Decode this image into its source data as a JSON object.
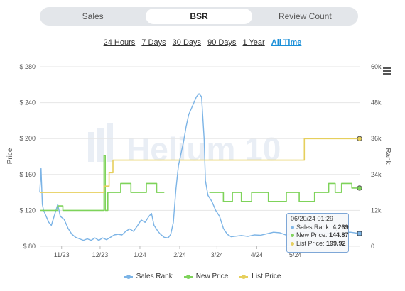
{
  "tabs": [
    {
      "label": "Sales",
      "active": false
    },
    {
      "label": "BSR",
      "active": true
    },
    {
      "label": "Review Count",
      "active": false
    }
  ],
  "ranges": [
    "24 Hours",
    "7 Days",
    "30 Days",
    "90 Days",
    "1 Year",
    "All Time"
  ],
  "active_range": "All Time",
  "watermark": "Helium 10",
  "colors": {
    "sales_rank": "#7cb4e6",
    "new_price": "#7ed35a",
    "list_price": "#e6cf5c",
    "accent": "#1a8fd8"
  },
  "icons": {
    "menu": "hamburger-menu-icon"
  },
  "tooltip": {
    "date": "06/20/24 01:29",
    "rows": [
      {
        "label": "Sales Rank:",
        "value": "4,269",
        "color": "#7cb4e6"
      },
      {
        "label": "New Price:",
        "value": "144.87",
        "color": "#7ed35a"
      },
      {
        "label": "List Price:",
        "value": "199.92",
        "color": "#e6cf5c"
      }
    ]
  },
  "chart_data": {
    "type": "line",
    "xlabel": "",
    "ylabel": "Price",
    "y2label": "Rank",
    "ylim": [
      80,
      280
    ],
    "y2lim": [
      0,
      60000
    ],
    "yticks": [
      "$ 80",
      "$ 120",
      "$ 160",
      "$ 200",
      "$ 240",
      "$ 280"
    ],
    "yticks_values": [
      80,
      120,
      160,
      200,
      240,
      280
    ],
    "y2ticks": [
      "0",
      "12k",
      "24k",
      "36k",
      "48k",
      "60k"
    ],
    "y2ticks_values": [
      0,
      12000,
      24000,
      36000,
      48000,
      60000
    ],
    "xticks": [
      {
        "label": "11/23",
        "x": "2023-11-01"
      },
      {
        "label": "12/23",
        "x": "2023-12-01"
      },
      {
        "label": "1/24",
        "x": "2024-01-01"
      },
      {
        "label": "2/24",
        "x": "2024-02-01"
      },
      {
        "label": "3/24",
        "x": "2024-03-01"
      },
      {
        "label": "4/24",
        "x": "2024-04-01"
      },
      {
        "label": "5/24",
        "x": "2024-05-01"
      }
    ],
    "xlim": [
      "2023-10-15",
      "2024-06-20"
    ],
    "grid": true,
    "legend": "bottom",
    "series": [
      {
        "name": "Sales Rank",
        "axis": "rank",
        "points": [
          [
            "2023-10-15",
            18000
          ],
          [
            "2023-10-16",
            26000
          ],
          [
            "2023-10-17",
            14000
          ],
          [
            "2023-10-18",
            12000
          ],
          [
            "2023-10-20",
            10000
          ],
          [
            "2023-10-22",
            8000
          ],
          [
            "2023-10-24",
            7000
          ],
          [
            "2023-10-29",
            14000
          ],
          [
            "2023-10-31",
            10000
          ],
          [
            "2023-11-03",
            9000
          ],
          [
            "2023-11-06",
            6000
          ],
          [
            "2023-11-09",
            4000
          ],
          [
            "2023-11-12",
            3000
          ],
          [
            "2023-11-15",
            2500
          ],
          [
            "2023-11-18",
            2000
          ],
          [
            "2023-11-21",
            2500
          ],
          [
            "2023-11-24",
            2000
          ],
          [
            "2023-11-27",
            2800
          ],
          [
            "2023-11-30",
            2000
          ],
          [
            "2023-12-03",
            2800
          ],
          [
            "2023-12-06",
            2200
          ],
          [
            "2023-12-09",
            3000
          ],
          [
            "2023-12-12",
            3800
          ],
          [
            "2023-12-15",
            4000
          ],
          [
            "2023-12-18",
            3800
          ],
          [
            "2023-12-21",
            5000
          ],
          [
            "2023-12-24",
            5800
          ],
          [
            "2023-12-27",
            5000
          ],
          [
            "2023-12-30",
            6800
          ],
          [
            "2024-01-02",
            8800
          ],
          [
            "2024-01-05",
            8000
          ],
          [
            "2024-01-08",
            10000
          ],
          [
            "2024-01-10",
            11000
          ],
          [
            "2024-01-12",
            7000
          ],
          [
            "2024-01-15",
            5000
          ],
          [
            "2024-01-17",
            4000
          ],
          [
            "2024-01-20",
            3000
          ],
          [
            "2024-01-23",
            2800
          ],
          [
            "2024-01-25",
            4000
          ],
          [
            "2024-01-27",
            8000
          ],
          [
            "2024-01-29",
            19000
          ],
          [
            "2024-01-31",
            27000
          ],
          [
            "2024-02-02",
            31000
          ],
          [
            "2024-02-04",
            35000
          ],
          [
            "2024-02-06",
            40000
          ],
          [
            "2024-02-08",
            44000
          ],
          [
            "2024-02-10",
            46000
          ],
          [
            "2024-02-12",
            48000
          ],
          [
            "2024-02-14",
            50000
          ],
          [
            "2024-02-16",
            51000
          ],
          [
            "2024-02-18",
            50000
          ],
          [
            "2024-02-20",
            36000
          ],
          [
            "2024-02-21",
            22000
          ],
          [
            "2024-02-23",
            17000
          ],
          [
            "2024-02-26",
            15000
          ],
          [
            "2024-02-29",
            12000
          ],
          [
            "2024-03-03",
            10000
          ],
          [
            "2024-03-06",
            6000
          ],
          [
            "2024-03-09",
            4000
          ],
          [
            "2024-03-12",
            3200
          ],
          [
            "2024-03-16",
            3400
          ],
          [
            "2024-03-20",
            3600
          ],
          [
            "2024-03-25",
            3300
          ],
          [
            "2024-03-30",
            3800
          ],
          [
            "2024-04-04",
            3700
          ],
          [
            "2024-04-09",
            4200
          ],
          [
            "2024-04-14",
            4700
          ],
          [
            "2024-04-19",
            4500
          ],
          [
            "2024-04-24",
            3700
          ],
          [
            "2024-04-29",
            4200
          ],
          [
            "2024-05-04",
            4600
          ],
          [
            "2024-05-09",
            5000
          ],
          [
            "2024-05-14",
            4800
          ],
          [
            "2024-05-19",
            4500
          ],
          [
            "2024-05-24",
            4300
          ],
          [
            "2024-05-29",
            4400
          ],
          [
            "2024-06-03",
            4200
          ],
          [
            "2024-06-08",
            4600
          ],
          [
            "2024-06-13",
            4700
          ],
          [
            "2024-06-20",
            4269
          ]
        ]
      },
      {
        "name": "New Price",
        "axis": "price",
        "points": [
          [
            "2023-10-15",
            120
          ],
          [
            "2023-10-29",
            120
          ],
          [
            "2023-10-29",
            125
          ],
          [
            "2023-11-02",
            125
          ],
          [
            "2023-11-02",
            120
          ],
          [
            "2023-12-04",
            120
          ],
          [
            "2023-12-04",
            181
          ],
          [
            "2023-12-05",
            181
          ],
          [
            "2023-12-05",
            120
          ],
          [
            "2023-12-07",
            120
          ],
          [
            "2023-12-07",
            140
          ],
          [
            "2023-12-17",
            140
          ],
          [
            "2023-12-17",
            150
          ],
          [
            "2023-12-25",
            150
          ],
          [
            "2023-12-25",
            140
          ],
          [
            "2024-01-06",
            140
          ],
          [
            "2024-01-06",
            150
          ],
          [
            "2024-01-14",
            150
          ],
          [
            "2024-01-14",
            140
          ],
          [
            "2024-01-20",
            140
          ],
          null,
          [
            "2024-02-24",
            140
          ],
          [
            "2024-03-06",
            140
          ],
          [
            "2024-03-06",
            130
          ],
          [
            "2024-03-13",
            130
          ],
          [
            "2024-03-13",
            140
          ],
          [
            "2024-03-20",
            140
          ],
          [
            "2024-03-20",
            130
          ],
          [
            "2024-03-28",
            130
          ],
          [
            "2024-03-28",
            140
          ],
          [
            "2024-04-10",
            140
          ],
          [
            "2024-04-10",
            130
          ],
          [
            "2024-04-24",
            130
          ],
          [
            "2024-04-24",
            140
          ],
          [
            "2024-05-04",
            140
          ],
          [
            "2024-05-04",
            130
          ],
          [
            "2024-05-16",
            130
          ],
          [
            "2024-05-16",
            140
          ],
          [
            "2024-05-27",
            140
          ],
          [
            "2024-05-27",
            150
          ],
          [
            "2024-06-01",
            150
          ],
          [
            "2024-06-01",
            140
          ],
          [
            "2024-06-06",
            140
          ],
          [
            "2024-06-06",
            150
          ],
          [
            "2024-06-14",
            150
          ],
          [
            "2024-06-14",
            144.87
          ],
          [
            "2024-06-20",
            144.87
          ]
        ]
      },
      {
        "name": "List Price",
        "axis": "price",
        "points": [
          [
            "2023-10-15",
            140
          ],
          [
            "2023-12-04",
            140
          ],
          [
            "2023-12-04",
            147
          ],
          [
            "2023-12-08",
            147
          ],
          [
            "2023-12-08",
            162
          ],
          [
            "2023-12-11",
            162
          ],
          [
            "2023-12-11",
            176
          ],
          [
            "2024-05-08",
            176
          ],
          [
            "2024-05-08",
            199.92
          ],
          [
            "2024-06-20",
            199.92
          ]
        ]
      }
    ]
  },
  "legend": [
    {
      "label": "Sales Rank",
      "color": "#7cb4e6"
    },
    {
      "label": "New Price",
      "color": "#7ed35a"
    },
    {
      "label": "List Price",
      "color": "#e6cf5c"
    }
  ]
}
